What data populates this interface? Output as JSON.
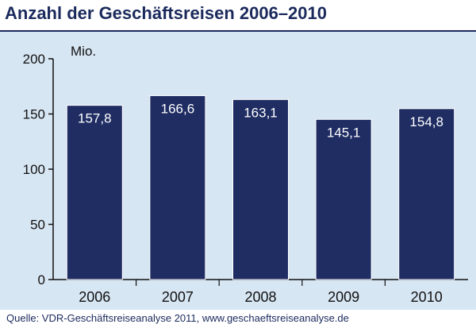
{
  "header": {
    "title": "Anzahl der Geschäftsreisen 2006–2010"
  },
  "footer": {
    "source": "Quelle: VDR-Geschäftsreiseanalyse 2011, www.geschaeftsreiseanalyse.de"
  },
  "colors": {
    "bar": "#1f2d63",
    "panel": "#d7e6f3",
    "title": "#1b2a5c"
  },
  "chart_data": {
    "type": "bar",
    "title": "Anzahl der Geschäftsreisen 2006–2010",
    "ylabel": "Mio.",
    "xlabel": "",
    "categories": [
      "2006",
      "2007",
      "2008",
      "2009",
      "2010"
    ],
    "values": [
      157.8,
      166.6,
      163.1,
      145.1,
      154.8
    ],
    "value_labels": [
      "157,8",
      "166,6",
      "163,1",
      "145,1",
      "154,8"
    ],
    "ylim": [
      0,
      200
    ],
    "yticks": [
      0,
      50,
      100,
      150,
      200
    ],
    "grid": false,
    "legend": "none"
  }
}
